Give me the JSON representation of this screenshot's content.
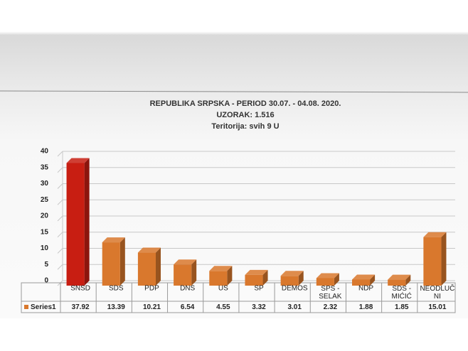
{
  "chart_data": {
    "type": "bar3d",
    "title": "REPUBLIKA SRPSKA - PERIOD 30.07. - 04.08. 2020.",
    "subtitle": "UZORAK: 1.516",
    "note": "Teritorija: svih 9 U",
    "categories": [
      "SNSD",
      "SDS",
      "PDP",
      "DNS",
      "US",
      "SP",
      "DEMOS",
      "SPS - SELAK",
      "NDP",
      "SDS - MIĆIĆ",
      "NEODLUČNI"
    ],
    "series": [
      {
        "name": "Series1",
        "color": "#d9782d",
        "values": [
          37.92,
          13.39,
          10.21,
          6.54,
          4.55,
          3.32,
          3.01,
          2.32,
          1.88,
          1.85,
          15.01
        ]
      }
    ],
    "bar_colors": [
      "#c81e12",
      "#d9782d",
      "#d9782d",
      "#d9782d",
      "#d9782d",
      "#d9782d",
      "#d9782d",
      "#d9782d",
      "#d9782d",
      "#d9782d",
      "#d9782d"
    ],
    "ylim": [
      0,
      40
    ],
    "yticks": [
      0,
      5,
      10,
      15,
      20,
      25,
      30,
      35,
      40
    ],
    "grid": true
  }
}
